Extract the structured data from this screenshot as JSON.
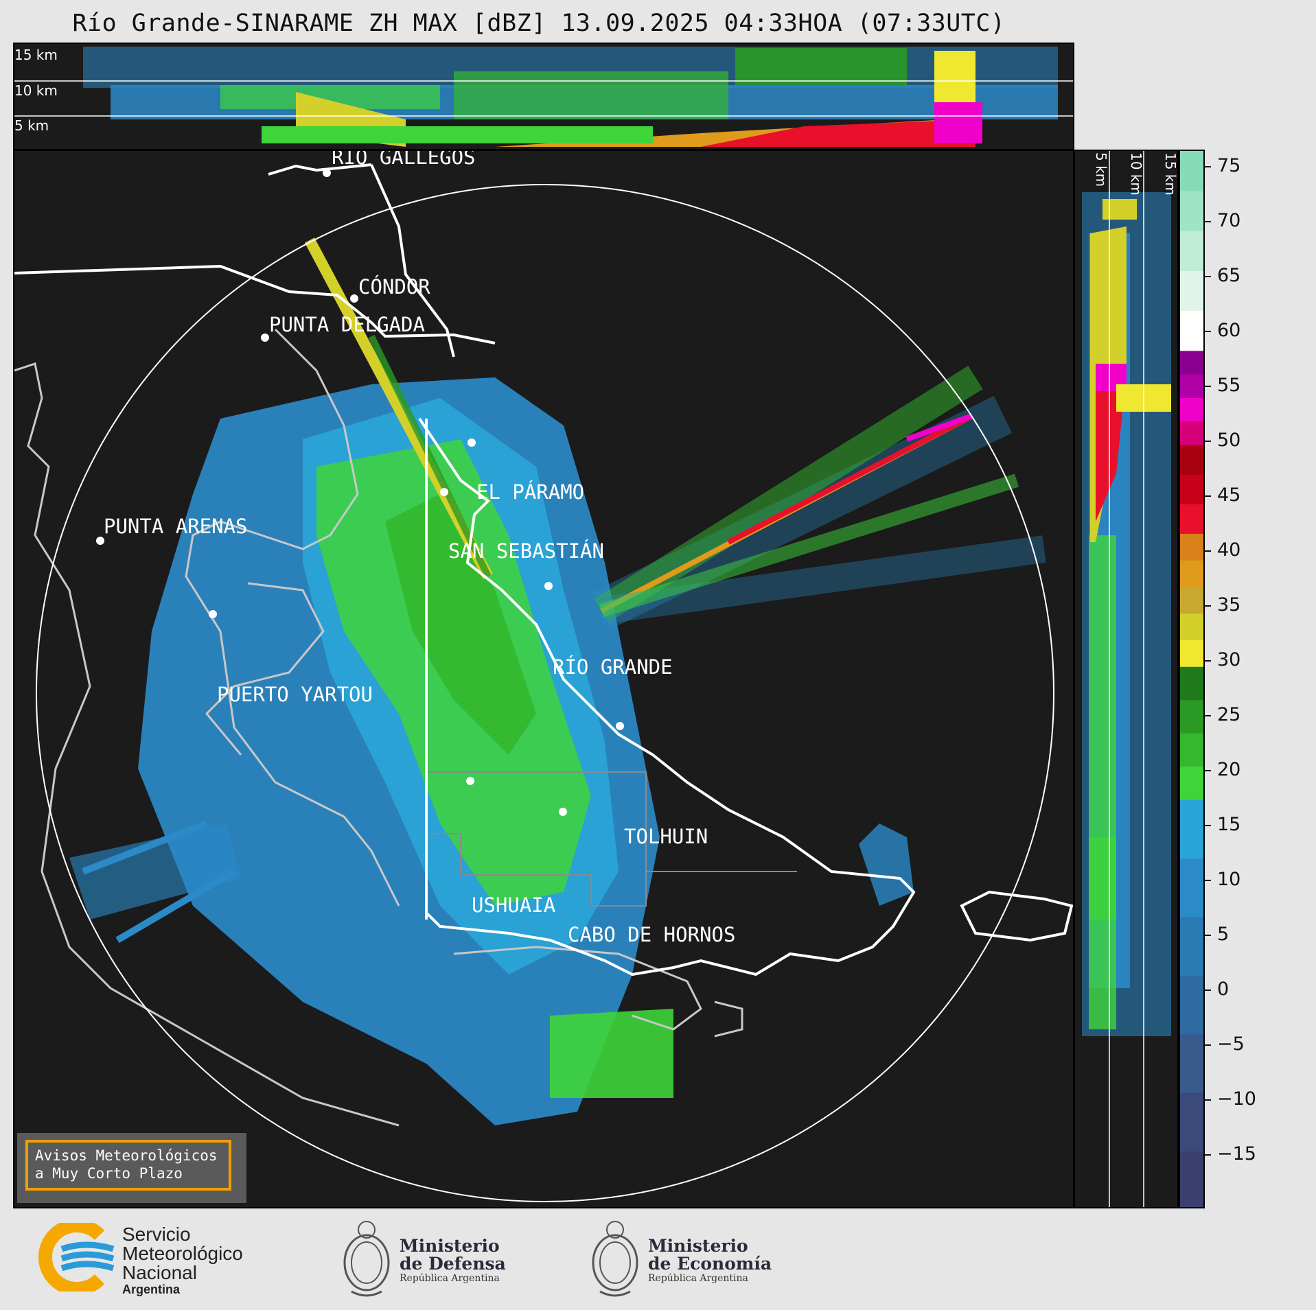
{
  "header": {
    "title": "Río Grande-SINARAME ZH MAX [dBZ] 13.09.2025 04:33HOA (07:33UTC)"
  },
  "altitude_labels": {
    "top": [
      "15 km",
      "10 km",
      "5 km"
    ],
    "side": [
      "5 km",
      "10 km",
      "15 km"
    ]
  },
  "cities": [
    {
      "name": "RÍO GALLEGOS"
    },
    {
      "name": "CÓNDOR"
    },
    {
      "name": "PUNTA DELGADA"
    },
    {
      "name": "EL PÁRAMO"
    },
    {
      "name": "PUNTA ARENAS"
    },
    {
      "name": "SAN SEBASTIÁN"
    },
    {
      "name": "RÍO GRANDE"
    },
    {
      "name": "PUERTO YARTOU"
    },
    {
      "name": "TOLHUIN"
    },
    {
      "name": "USHUAIA"
    },
    {
      "name": "CABO DE HORNOS"
    }
  ],
  "colorbar": {
    "unit": "dBZ",
    "range": [
      -19,
      76.5
    ],
    "tick_labels": [
      "75",
      "70",
      "65",
      "60",
      "55",
      "50",
      "45",
      "40",
      "35",
      "30",
      "25",
      "20",
      "15",
      "10",
      "5",
      "0",
      "−5",
      "−10",
      "−15"
    ],
    "bands": [
      {
        "from": -19,
        "to": 18,
        "colors": [
          "#3a3f6e",
          "#3b4a7a",
          "#3a5a8c",
          "#2f6aa0",
          "#2a7ab4",
          "#2b8ac8",
          "#2aa5d8"
        ]
      },
      {
        "from": 18,
        "to": 30,
        "colors": [
          "#3ed43a",
          "#34b82e",
          "#2a9a24",
          "#1f7a1c"
        ]
      },
      {
        "from": 30,
        "to": 42,
        "colors": [
          "#f0e830",
          "#d4d02a",
          "#c8a830",
          "#e09a1c",
          "#d8801a"
        ]
      },
      {
        "from": 42,
        "to": 50,
        "colors": [
          "#e8102a",
          "#c8001a",
          "#a8000e"
        ]
      },
      {
        "from": 50,
        "to": 58.5,
        "colors": [
          "#d8007a",
          "#f000c8",
          "#b000a8",
          "#8c0090"
        ]
      },
      {
        "from": 58.5,
        "to": 76.5,
        "colors": [
          "#ffffff",
          "#e0f4ea",
          "#c0ecd8",
          "#a0e4c8",
          "#86dcb8"
        ]
      }
    ]
  },
  "warning_box": {
    "line1": "Avisos Meteorológicos",
    "line2": "a Muy Corto Plazo"
  },
  "logos": {
    "smn": {
      "line1": "Servicio",
      "line2": "Meteorológico",
      "line3": "Nacional",
      "line4": "Argentina"
    },
    "defensa": {
      "line1": "Ministerio",
      "line2": "de Defensa",
      "line3": "República Argentina"
    },
    "economia": {
      "line1": "Ministerio",
      "line2": "de Economía",
      "line3": "República Argentina"
    }
  },
  "colors": {
    "background": "#1b1b1b",
    "range_ring": "#ffffff",
    "coastline": "#c8c8c8",
    "border": "#ffffff",
    "accent_box": "#f0a000",
    "smn_orange": "#f5a800",
    "smn_blue": "#2a9ad8"
  }
}
